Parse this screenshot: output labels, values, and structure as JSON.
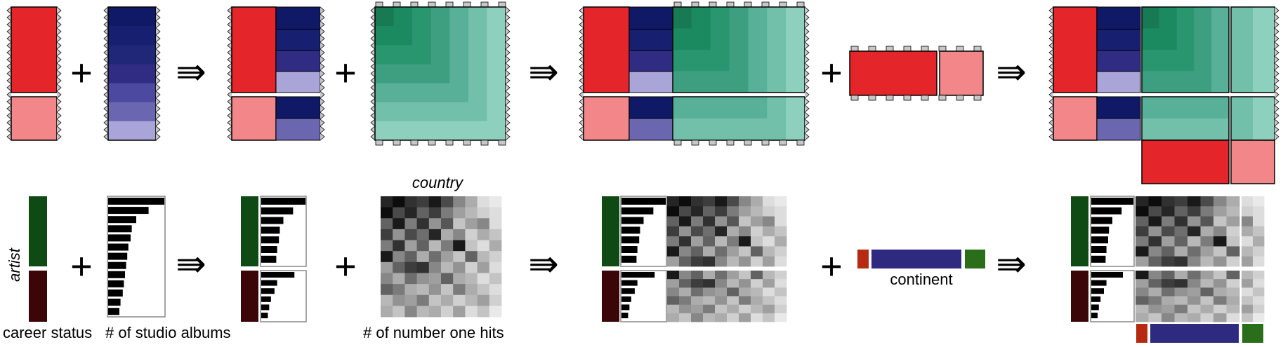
{
  "colors": {
    "red": "#e4262b",
    "red_light": "#f28688",
    "blue_shades": [
      "#0f1965",
      "#172070",
      "#202678",
      "#302c84",
      "#4b49a0",
      "#6a66b0",
      "#a9a5d8"
    ],
    "teal_shades": [
      "#187a52",
      "#1c8a60",
      "#2a9670",
      "#3e9e80",
      "#58b098",
      "#72c0aa",
      "#8ed0be"
    ],
    "career_active": "#0f4a14",
    "career_inactive": "#3a0607",
    "continent_red": "#b52a10",
    "continent_blue": "#2e2a80",
    "continent_green": "#2a6e1a",
    "connector_gray": "#c8c8c8"
  },
  "symbols": {
    "plus": "+",
    "implies": "⇛"
  },
  "labels": {
    "artist": "artist",
    "country": "country",
    "career_status": "career status",
    "studio_albums": "# of studio albums",
    "number_one_hits": "# of number one hits",
    "continent": "continent"
  },
  "chart_data": {
    "type": "bar",
    "studio_albums_bars": [
      1.0,
      0.72,
      0.5,
      0.42,
      0.4,
      0.36,
      0.34,
      0.32,
      0.3,
      0.28,
      0.26,
      0.22,
      0.2
    ],
    "number_one_hits_grid": [
      [
        0.85,
        0.95,
        0.8,
        0.75,
        0.9,
        0.7,
        0.45,
        0.3,
        0.1,
        0.05
      ],
      [
        0.95,
        0.7,
        0.85,
        0.6,
        0.75,
        0.5,
        0.35,
        0.25,
        0.15,
        0.1
      ],
      [
        0.6,
        0.9,
        0.5,
        0.8,
        0.4,
        0.65,
        0.2,
        0.35,
        0.45,
        0.1
      ],
      [
        0.75,
        0.4,
        0.7,
        0.55,
        0.85,
        0.3,
        0.45,
        0.15,
        0.3,
        0.2
      ],
      [
        0.5,
        0.8,
        0.35,
        0.6,
        0.25,
        0.5,
        0.9,
        0.2,
        0.1,
        0.3
      ],
      [
        0.9,
        0.45,
        0.6,
        0.3,
        0.55,
        0.35,
        0.2,
        0.6,
        0.25,
        0.15
      ],
      [
        0.35,
        0.6,
        0.75,
        0.8,
        0.45,
        0.25,
        0.4,
        0.15,
        0.35,
        0.1
      ],
      [
        0.45,
        0.3,
        0.55,
        0.4,
        0.35,
        0.6,
        0.3,
        0.25,
        0.1,
        0.2
      ],
      [
        0.6,
        0.5,
        0.3,
        0.25,
        0.4,
        0.2,
        0.5,
        0.3,
        0.2,
        0.1
      ],
      [
        0.25,
        0.4,
        0.35,
        0.5,
        0.2,
        0.3,
        0.15,
        0.25,
        0.35,
        0.15
      ],
      [
        0.3,
        0.2,
        0.45,
        0.25,
        0.3,
        0.15,
        0.35,
        0.1,
        0.2,
        0.05
      ]
    ]
  }
}
